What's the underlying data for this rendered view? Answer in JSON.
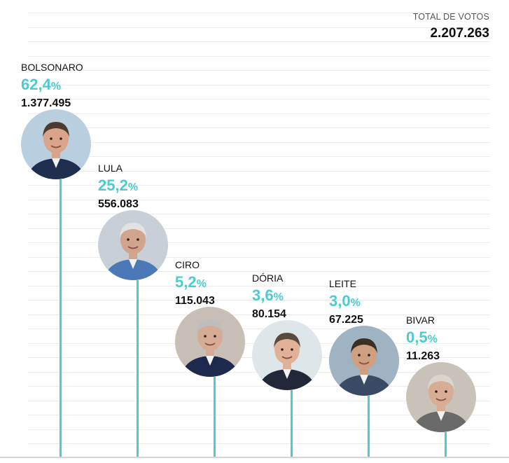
{
  "total": {
    "label": "TOTAL DE VOTOS",
    "value": "2.207.263"
  },
  "colors": {
    "accent": "#4ccbd0",
    "text": "#111111",
    "grid": "#ececec"
  },
  "chart_data": {
    "type": "bar",
    "title": "",
    "categories": [
      "BOLSONARO",
      "LULA",
      "CIRO",
      "DÓRIA",
      "LEITE",
      "BIVAR"
    ],
    "values": [
      62.4,
      25.2,
      5.2,
      3.6,
      3.0,
      0.5
    ],
    "percent_labels": [
      "62,4",
      "25,2",
      "5,2",
      "3,6",
      "3,0",
      "0,5"
    ],
    "percent_symbol": "%",
    "votes": [
      "1.377.495",
      "556.083",
      "115.043",
      "80.154",
      "67.225",
      "11.263"
    ],
    "vote_counts": [
      1377495,
      556083,
      115043,
      80154,
      67225,
      11263
    ],
    "unit": "%",
    "grid": true,
    "legend": "none"
  }
}
